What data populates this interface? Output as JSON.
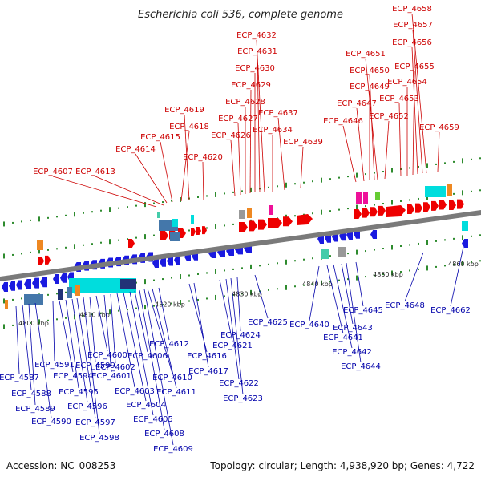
{
  "title": "Escherichia coli 536, complete genome",
  "footer": {
    "accession": "Accession: NC_008253",
    "summary": "Topology: circular; Length: 4,938,920 bp; Genes: 4,722"
  },
  "colors": {
    "plus_label": "#cc0000",
    "minus_label": "#0000aa",
    "plus_arrow": "#ee0000",
    "minus_arrow": "#1a1ae0",
    "backbone": "#7a7a7a",
    "tick": "#2e8b2e",
    "cyan": "#00dddd",
    "orange": "#ee8822",
    "steel": "#4477aa",
    "magenta": "#ee1199",
    "lime": "#66cc33",
    "grey": "#999999",
    "teal": "#44ccaa",
    "navy": "#223377"
  },
  "kbp_labels": [
    "4800 kbp",
    "4810 kbp",
    "4820 kbp",
    "4830 kbp",
    "4840 kbp",
    "4850 kbp",
    "4860 kbp"
  ],
  "plus_genes": [
    "ECP_4607",
    "ECP_4613",
    "ECP_4614",
    "ECP_4615",
    "ECP_4618",
    "ECP_4619",
    "ECP_4620",
    "ECP_4626",
    "ECP_4627",
    "ECP_4628",
    "ECP_4629",
    "ECP_4630",
    "ECP_4631",
    "ECP_4632",
    "ECP_4634",
    "ECP_4637",
    "ECP_4639",
    "ECP_4646",
    "ECP_4647",
    "ECP_4649",
    "ECP_4650",
    "ECP_4651",
    "ECP_4652",
    "ECP_4653",
    "ECP_4654",
    "ECP_4655",
    "ECP_4656",
    "ECP_4657",
    "ECP_4658",
    "ECP_4659"
  ],
  "minus_genes": [
    "ECP_4587",
    "ECP_4588",
    "ECP_4589",
    "ECP_4590",
    "ECP_4591",
    "ECP_4594",
    "ECP_4595",
    "ECP_4596",
    "ECP_4597",
    "ECP_4598",
    "ECP_4599",
    "ECP_4600",
    "ECP_4601",
    "ECP_4602",
    "ECP_4603",
    "ECP_4604",
    "ECP_4605",
    "ECP_4606",
    "ECP_4608",
    "ECP_4609",
    "ECP_4610",
    "ECP_4611",
    "ECP_4612",
    "ECP_4616",
    "ECP_4617",
    "ECP_4621",
    "ECP_4622",
    "ECP_4623",
    "ECP_4624",
    "ECP_4625",
    "ECP_4640",
    "ECP_4641",
    "ECP_4642",
    "ECP_4643",
    "ECP_4644",
    "ECP_4645",
    "ECP_4648",
    "ECP_4662"
  ]
}
